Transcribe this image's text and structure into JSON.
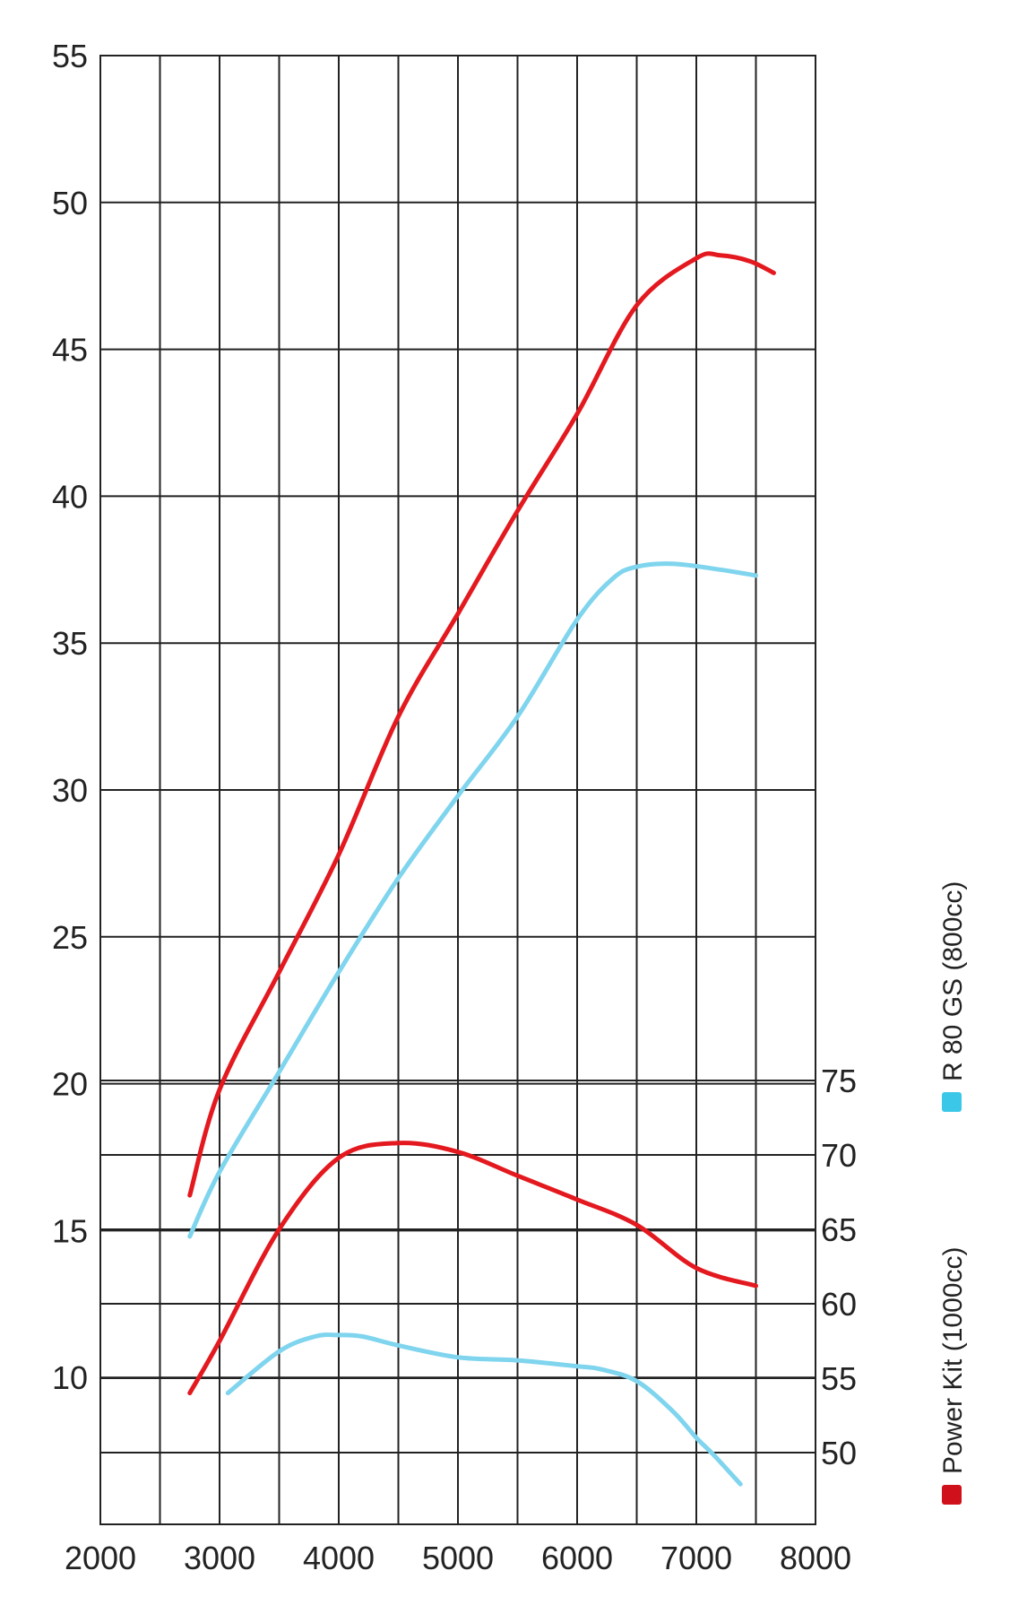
{
  "chart_data": {
    "type": "line",
    "title": "",
    "xlabel": "",
    "ylabel": "",
    "xlim": [
      2000,
      8000
    ],
    "ylim": [
      5,
      55
    ],
    "x_ticks": [
      "2000",
      "3000",
      "4000",
      "5000",
      "6000",
      "7000",
      "8000"
    ],
    "y_ticks": [
      "55",
      "50",
      "45",
      "40",
      "35",
      "30",
      "25",
      "20",
      "15",
      "10"
    ],
    "y2_ticks": [
      "75",
      "70",
      "65",
      "60",
      "55",
      "50"
    ],
    "y2lim": [
      45,
      75
    ],
    "grid": true,
    "legend": [
      {
        "name": "R 80 GS (800cc)",
        "color": "#3bc8e8"
      },
      {
        "name": "Power Kit (1000cc)",
        "color": "#d0101a"
      }
    ],
    "series": [
      {
        "name": "Power Kit (1000cc)",
        "axis": "left",
        "color": "#e3191f",
        "x": [
          2750,
          3000,
          3500,
          4000,
          4500,
          5000,
          5500,
          6000,
          6500,
          7000,
          7200,
          7450,
          7650
        ],
        "y": [
          16.2,
          19.8,
          23.8,
          27.8,
          32.5,
          36.0,
          39.5,
          42.8,
          46.5,
          48.1,
          48.2,
          48.0,
          47.6
        ]
      },
      {
        "name": "R 80 GS (800cc)",
        "axis": "left",
        "color": "#7fd4ee",
        "x": [
          2750,
          3000,
          3500,
          4000,
          4500,
          5000,
          5500,
          6000,
          6300,
          6500,
          6800,
          7200,
          7500
        ],
        "y": [
          14.8,
          17.0,
          20.4,
          23.8,
          27.0,
          29.8,
          32.5,
          35.8,
          37.2,
          37.6,
          37.7,
          37.5,
          37.3
        ]
      },
      {
        "name": "Power Kit (1000cc)",
        "axis": "right",
        "color": "#e3191f",
        "x": [
          2750,
          3000,
          3500,
          4000,
          4500,
          5000,
          5500,
          6000,
          6500,
          7000,
          7500
        ],
        "y": [
          54.0,
          57.5,
          65.0,
          69.8,
          70.8,
          70.2,
          68.6,
          67.0,
          65.3,
          62.4,
          61.2
        ]
      },
      {
        "name": "R 80 GS (800cc)",
        "axis": "right",
        "color": "#7fd4ee",
        "x": [
          3070,
          3500,
          3800,
          4000,
          4200,
          4500,
          5000,
          5500,
          6000,
          6200,
          6500,
          6800,
          7000,
          7150,
          7370
        ],
        "y": [
          54.0,
          56.8,
          57.8,
          57.9,
          57.8,
          57.2,
          56.4,
          56.2,
          55.8,
          55.6,
          54.8,
          52.8,
          51.0,
          49.8,
          47.8
        ]
      }
    ]
  }
}
